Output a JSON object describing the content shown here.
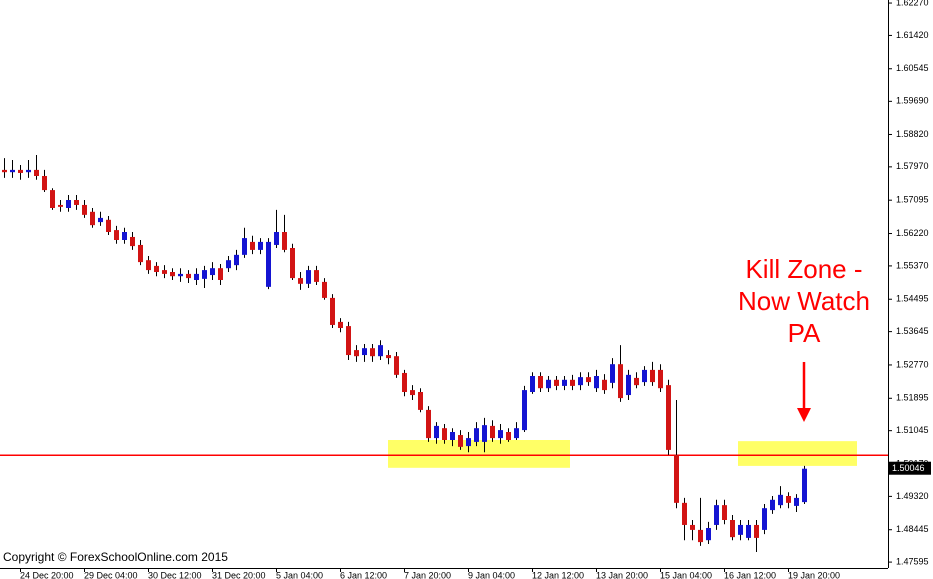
{
  "chart_data": {
    "type": "candlestick",
    "categories": [
      null,
      null,
      "24 Dec 20:00",
      null,
      null,
      null,
      null,
      null,
      null,
      null,
      "29 Dec 04:00",
      null,
      null,
      null,
      null,
      null,
      null,
      null,
      "30 Dec 12:00",
      null,
      null,
      null,
      null,
      null,
      null,
      null,
      "31 Dec 20:00",
      null,
      null,
      null,
      null,
      null,
      null,
      null,
      "5 Jan 04:00",
      null,
      null,
      null,
      null,
      null,
      null,
      null,
      "6 Jan 12:00",
      null,
      null,
      null,
      null,
      null,
      null,
      null,
      "7 Jan 20:00",
      null,
      null,
      null,
      null,
      null,
      null,
      null,
      "9 Jan 04:00",
      null,
      null,
      null,
      null,
      null,
      null,
      null,
      "12 Jan 12:00",
      null,
      null,
      null,
      null,
      null,
      null,
      null,
      "13 Jan 20:00",
      null,
      null,
      null,
      null,
      null,
      null,
      null,
      "15 Jan 04:00",
      null,
      null,
      null,
      null,
      null,
      null,
      null,
      "16 Jan 12:00",
      null,
      null,
      null,
      null,
      null,
      null,
      null,
      "19 Jan 20:00",
      null,
      null
    ],
    "open": [
      1.5789,
      1.5783,
      1.5789,
      1.5783,
      1.5789,
      1.5773,
      1.5736,
      1.5697,
      1.5689,
      1.571,
      1.5697,
      1.5679,
      1.5652,
      1.5658,
      1.5631,
      1.5605,
      1.5613,
      1.5592,
      1.5552,
      1.5537,
      1.5526,
      1.5521,
      1.551,
      1.5516,
      1.55,
      1.5503,
      1.5513,
      1.5531,
      1.5531,
      1.5539,
      1.5566,
      1.56,
      1.5579,
      1.5482,
      1.5592,
      1.5626,
      1.5584,
      1.5505,
      1.549,
      1.5526,
      1.5495,
      1.5453,
      1.539,
      1.5379,
      1.5316,
      1.5303,
      1.5321,
      1.53,
      1.5303,
      1.53,
      1.5256,
      1.5211,
      1.5206,
      1.5159,
      1.5085,
      1.5111,
      1.508,
      1.5093,
      1.5064,
      1.5075,
      1.5075,
      1.5117,
      1.5085,
      1.5101,
      1.5085,
      1.5106,
      1.5206,
      1.5248,
      1.5216,
      1.5238,
      1.5222,
      1.5238,
      1.5224,
      1.5245,
      1.5216,
      1.5238,
      1.523,
      1.5279,
      1.5198,
      1.5243,
      1.5232,
      1.5264,
      1.5264,
      1.5224,
      1.5041,
      1.4915,
      1.4857,
      1.4844,
      1.4817,
      1.4857,
      1.4909,
      1.487,
      1.4831,
      1.4823,
      1.4857,
      1.4844,
      1.4896,
      1.4909,
      1.4933,
      1.4907,
      1.4917
    ],
    "high": [
      1.582,
      1.5815,
      1.5802,
      1.5815,
      1.5828,
      1.5789,
      1.5741,
      1.571,
      1.5723,
      1.5723,
      1.571,
      1.5689,
      1.5679,
      1.5668,
      1.5642,
      1.5637,
      1.5626,
      1.5605,
      1.5563,
      1.5547,
      1.5539,
      1.5531,
      1.5531,
      1.5526,
      1.5531,
      1.5537,
      1.5547,
      1.5542,
      1.5563,
      1.5579,
      1.5637,
      1.5616,
      1.561,
      1.561,
      1.5684,
      1.5671,
      1.5595,
      1.5521,
      1.5537,
      1.5537,
      1.5505,
      1.5463,
      1.54,
      1.539,
      1.5329,
      1.5332,
      1.5332,
      1.5342,
      1.5316,
      1.5311,
      1.5264,
      1.5224,
      1.5216,
      1.5169,
      1.5127,
      1.5122,
      1.5111,
      1.5106,
      1.5101,
      1.5127,
      1.5138,
      1.5132,
      1.5122,
      1.5111,
      1.5127,
      1.5222,
      1.5258,
      1.5258,
      1.5248,
      1.5248,
      1.5248,
      1.5251,
      1.5258,
      1.5258,
      1.5264,
      1.5253,
      1.5295,
      1.5329,
      1.5264,
      1.5258,
      1.5274,
      1.5285,
      1.5279,
      1.5238,
      1.5185,
      1.4928,
      1.487,
      1.4928,
      1.4865,
      1.4923,
      1.4923,
      1.4883,
      1.487,
      1.487,
      1.487,
      1.4912,
      1.4933,
      1.4959,
      1.4943,
      1.4938,
      1.5012
    ],
    "low": [
      1.5768,
      1.5768,
      1.5763,
      1.5768,
      1.5763,
      1.5731,
      1.5684,
      1.5679,
      1.5679,
      1.5684,
      1.5663,
      1.5637,
      1.5642,
      1.5618,
      1.5595,
      1.5595,
      1.5579,
      1.5539,
      1.5516,
      1.551,
      1.5505,
      1.55,
      1.5495,
      1.5492,
      1.5487,
      1.5479,
      1.55,
      1.5487,
      1.5521,
      1.5526,
      1.5558,
      1.5568,
      1.5568,
      1.5476,
      1.5584,
      1.5573,
      1.55,
      1.5474,
      1.5479,
      1.5487,
      1.5448,
      1.5374,
      1.5363,
      1.529,
      1.5285,
      1.5285,
      1.5285,
      1.529,
      1.5279,
      1.5243,
      1.5195,
      1.5185,
      1.5153,
      1.5075,
      1.507,
      1.507,
      1.5064,
      1.5054,
      1.5048,
      1.5064,
      1.5048,
      1.5075,
      1.507,
      1.5075,
      1.508,
      1.5101,
      1.5201,
      1.5206,
      1.5206,
      1.5211,
      1.5211,
      1.5211,
      1.5211,
      1.5222,
      1.5206,
      1.5201,
      1.5216,
      1.518,
      1.5185,
      1.5216,
      1.5222,
      1.5222,
      1.5206,
      1.5041,
      1.4901,
      1.4817,
      1.4817,
      1.4802,
      1.4807,
      1.4844,
      1.4859,
      1.4817,
      1.4817,
      1.4817,
      1.4786,
      1.4833,
      1.4886,
      1.4901,
      1.4901,
      1.4891,
      1.4912
    ],
    "close": [
      1.5783,
      1.5789,
      1.5781,
      1.5789,
      1.5773,
      1.5736,
      1.5689,
      1.5692,
      1.571,
      1.5697,
      1.5671,
      1.5644,
      1.5663,
      1.5626,
      1.5605,
      1.5626,
      1.5589,
      1.5547,
      1.5526,
      1.5521,
      1.5516,
      1.551,
      1.5516,
      1.5505,
      1.5516,
      1.5526,
      1.5531,
      1.55,
      1.5552,
      1.5566,
      1.561,
      1.5579,
      1.56,
      1.56,
      1.5626,
      1.5579,
      1.5505,
      1.549,
      1.5526,
      1.5495,
      1.5453,
      1.5382,
      1.5374,
      1.5303,
      1.53,
      1.5321,
      1.53,
      1.5329,
      1.5295,
      1.5251,
      1.5206,
      1.5198,
      1.5159,
      1.5085,
      1.5117,
      1.508,
      1.5101,
      1.5062,
      1.5085,
      1.5111,
      1.5119,
      1.5085,
      1.5106,
      1.508,
      1.5111,
      1.5211,
      1.5248,
      1.5216,
      1.5238,
      1.5222,
      1.5238,
      1.5222,
      1.5245,
      1.5232,
      1.5248,
      1.5211,
      1.5279,
      1.519,
      1.5251,
      1.5224,
      1.5264,
      1.5232,
      1.5216,
      1.5054,
      1.4915,
      1.4857,
      1.4844,
      1.4812,
      1.4849,
      1.4909,
      1.487,
      1.4825,
      1.4857,
      1.4857,
      1.4823,
      1.4901,
      1.4923,
      1.4936,
      1.4915,
      1.4928,
      1.50046
    ],
    "up_color": "#1414d2",
    "down_color": "#d21414",
    "wick_color": "#000000",
    "ylim": [
      1.4744,
      1.6235
    ],
    "yticks": [
      {
        "value": 1.6227,
        "label": "1.62270"
      },
      {
        "value": 1.6142,
        "label": "1.61420"
      },
      {
        "value": 1.60545,
        "label": "1.60545"
      },
      {
        "value": 1.5969,
        "label": "1.59690"
      },
      {
        "value": 1.5882,
        "label": "1.58820"
      },
      {
        "value": 1.5797,
        "label": "1.57970"
      },
      {
        "value": 1.57095,
        "label": "1.57095"
      },
      {
        "value": 1.5622,
        "label": "1.56220"
      },
      {
        "value": 1.5537,
        "label": "1.55370"
      },
      {
        "value": 1.54495,
        "label": "1.54495"
      },
      {
        "value": 1.53645,
        "label": "1.53645"
      },
      {
        "value": 1.5277,
        "label": "1.52770"
      },
      {
        "value": 1.51895,
        "label": "1.51895"
      },
      {
        "value": 1.51045,
        "label": "1.51045"
      },
      {
        "value": 1.5017,
        "label": "1.50170"
      },
      {
        "value": 1.4932,
        "label": "1.49320"
      },
      {
        "value": 1.48445,
        "label": "1.48445"
      },
      {
        "value": 1.47595,
        "label": "1.47595"
      }
    ],
    "level": {
      "value": 1.504,
      "color": "#ff0000"
    },
    "zones": [
      {
        "high": 1.508,
        "low": 1.5007,
        "color": "#ffff66"
      },
      {
        "high": 1.5077,
        "low": 1.5012,
        "color": "#ffff66"
      }
    ],
    "annotation": [
      "Kill Zone -",
      "Now Watch",
      "PA"
    ],
    "annotation_color": "#ff0000",
    "copyright": "Copyright © ForexSchoolOnline.com 2015"
  }
}
